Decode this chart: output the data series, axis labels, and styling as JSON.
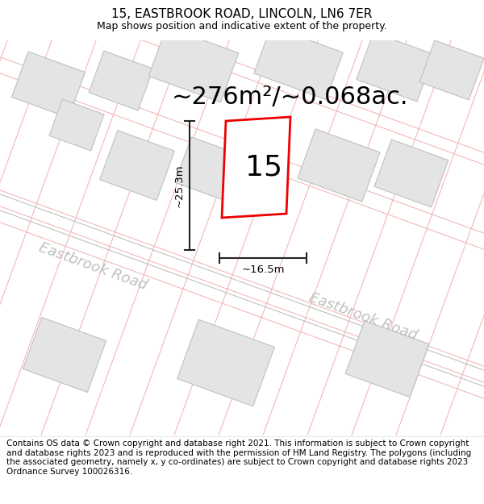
{
  "title": "15, EASTBROOK ROAD, LINCOLN, LN6 7ER",
  "subtitle": "Map shows position and indicative extent of the property.",
  "area_text": "~276m²/~0.068ac.",
  "label_15": "15",
  "dim_width": "~16.5m",
  "dim_height": "~25.3m",
  "road_label1": "Eastbrook Road",
  "road_label2": "Eastbrook Road",
  "footer": "Contains OS data © Crown copyright and database right 2021. This information is subject to Crown copyright and database rights 2023 and is reproduced with the permission of HM Land Registry. The polygons (including the associated geometry, namely x, y co-ordinates) are subject to Crown copyright and database rights 2023 Ordnance Survey 100026316.",
  "red_color": "#ee0000",
  "pink_line_color": "#f0b0b0",
  "gray_line_color": "#c0c0c0",
  "building_fill": "#e4e4e4",
  "building_edge": "#c0c0c0",
  "dim_line_color": "#222222",
  "road_text_color": "#c0c0c0",
  "title_fontsize": 11,
  "subtitle_fontsize": 9,
  "area_fontsize": 22,
  "label15_fontsize": 26,
  "dim_fontsize": 9.5,
  "road_fontsize": 13,
  "footer_fontsize": 7.5
}
